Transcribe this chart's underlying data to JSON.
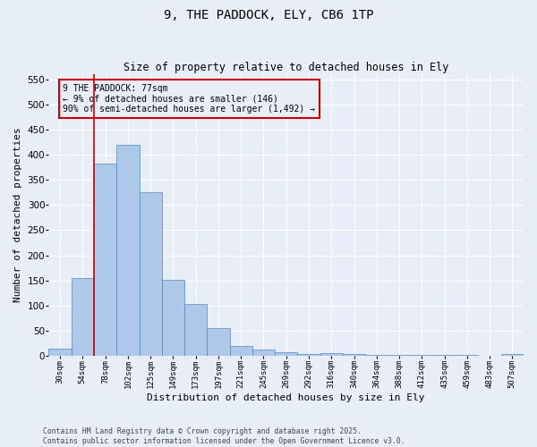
{
  "title_line1": "9, THE PADDOCK, ELY, CB6 1TP",
  "title_line2": "Size of property relative to detached houses in Ely",
  "xlabel": "Distribution of detached houses by size in Ely",
  "ylabel": "Number of detached properties",
  "background_color": "#e8eef8",
  "bar_color": "#adc8e8",
  "bar_edge_color": "#5588bb",
  "annotation_box_color": "#cc0000",
  "vline_color": "#cc0000",
  "categories": [
    "30sqm",
    "54sqm",
    "78sqm",
    "102sqm",
    "125sqm",
    "149sqm",
    "173sqm",
    "197sqm",
    "221sqm",
    "245sqm",
    "269sqm",
    "292sqm",
    "316sqm",
    "340sqm",
    "364sqm",
    "388sqm",
    "412sqm",
    "435sqm",
    "459sqm",
    "483sqm",
    "507sqm"
  ],
  "values": [
    14,
    155,
    383,
    420,
    325,
    152,
    103,
    55,
    20,
    12,
    8,
    4,
    5,
    3,
    2,
    1,
    1,
    1,
    1,
    0,
    4
  ],
  "ylim": [
    0,
    560
  ],
  "yticks": [
    0,
    50,
    100,
    150,
    200,
    250,
    300,
    350,
    400,
    450,
    500,
    550
  ],
  "annotation_line1": "9 THE PADDOCK: 77sqm",
  "annotation_line2": "← 9% of detached houses are smaller (146)",
  "annotation_line3": "90% of semi-detached houses are larger (1,492) →",
  "vline_x": 1.5,
  "footer_line1": "Contains HM Land Registry data © Crown copyright and database right 2025.",
  "footer_line2": "Contains public sector information licensed under the Open Government Licence v3.0."
}
